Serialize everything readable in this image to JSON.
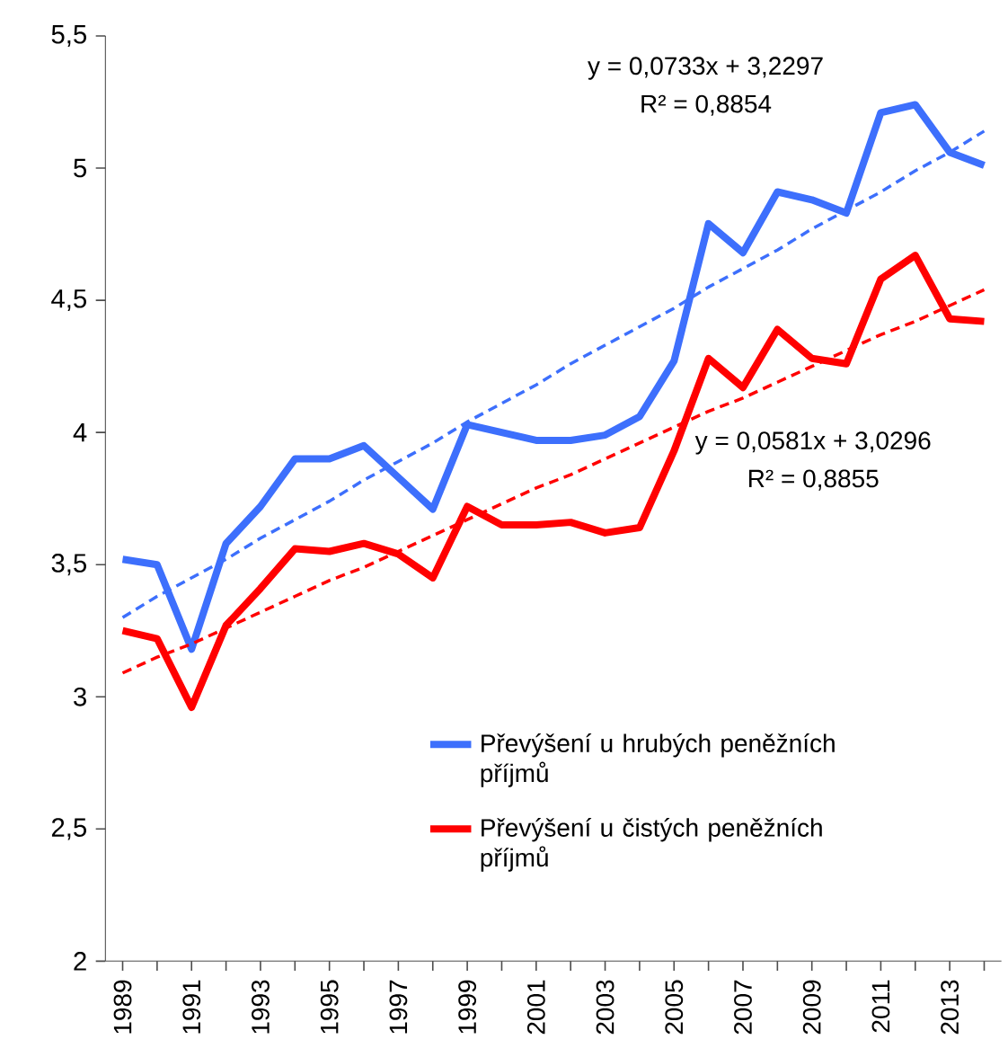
{
  "chart_data": {
    "type": "line",
    "x": [
      1989,
      1990,
      1991,
      1992,
      1993,
      1994,
      1995,
      1996,
      1997,
      1998,
      1999,
      2000,
      2001,
      2002,
      2003,
      2004,
      2005,
      2006,
      2007,
      2008,
      2009,
      2010,
      2011,
      2012,
      2013,
      2014
    ],
    "series": [
      {
        "name": "Převýšení u hrubých peněžních příjmů",
        "color": "#3d6ffc",
        "values": [
          3.52,
          3.5,
          3.18,
          3.58,
          3.72,
          3.9,
          3.9,
          3.95,
          3.83,
          3.71,
          4.03,
          4.0,
          3.97,
          3.97,
          3.99,
          4.06,
          4.27,
          4.79,
          4.68,
          4.91,
          4.88,
          4.83,
          5.21,
          5.24,
          5.06,
          5.01
        ]
      },
      {
        "name": "Převýšení u čistých peněžních příjmů",
        "color": "#ff0000",
        "values": [
          3.25,
          3.22,
          2.96,
          3.27,
          3.41,
          3.56,
          3.55,
          3.58,
          3.54,
          3.45,
          3.72,
          3.65,
          3.65,
          3.66,
          3.62,
          3.64,
          3.93,
          4.28,
          4.17,
          4.39,
          4.28,
          4.26,
          4.58,
          4.67,
          4.43,
          4.42
        ]
      },
      {
        "type": "line",
        "line_style": "dashed",
        "color": "#3d6ffc",
        "values": [
          3.3,
          3.38,
          3.45,
          3.52,
          3.6,
          3.67,
          3.74,
          3.82,
          3.89,
          3.96,
          4.04,
          4.11,
          4.18,
          4.26,
          4.33,
          4.4,
          4.47,
          4.55,
          4.62,
          4.69,
          4.77,
          4.84,
          4.91,
          4.99,
          5.06,
          5.14
        ]
      },
      {
        "type": "line",
        "line_style": "dashed",
        "color": "#ff0000",
        "values": [
          3.09,
          3.15,
          3.2,
          3.26,
          3.32,
          3.38,
          3.44,
          3.49,
          3.55,
          3.61,
          3.67,
          3.73,
          3.79,
          3.84,
          3.9,
          3.96,
          4.02,
          4.08,
          4.13,
          4.19,
          4.25,
          4.31,
          4.37,
          4.42,
          4.48,
          4.54
        ]
      }
    ],
    "annotations": [
      "y = 0,0733x + 3,2297",
      "R² = 0,8854",
      "y = 0,0581x + 3,0296",
      "R² = 0,8855"
    ],
    "xlim": [
      1988.5,
      2014.5
    ],
    "xticks": [
      1989,
      {
        "value": 1990,
        "label": null
      },
      1991,
      {
        "value": 1992,
        "label": null
      },
      1993,
      {
        "value": 1994,
        "label": null
      },
      1995,
      {
        "value": 1996,
        "label": null
      },
      1997,
      {
        "value": 1998,
        "label": null
      },
      1999,
      {
        "value": 2000,
        "label": null
      },
      2001,
      {
        "value": 2002,
        "label": null
      },
      2003,
      {
        "value": 2004,
        "label": null
      },
      2005,
      {
        "value": 2006,
        "label": null
      },
      2007,
      {
        "value": 2008,
        "label": null
      },
      2009,
      {
        "value": 2010,
        "label": null
      },
      2011,
      {
        "value": 2012,
        "label": null
      },
      2013,
      {
        "value": 2014,
        "label": null
      }
    ],
    "ylim": [
      2,
      5.5
    ],
    "yticks": [
      2,
      {
        "value": 2.5,
        "label": "2,5"
      },
      3,
      {
        "value": 3.5,
        "label": "3,5"
      },
      4,
      {
        "value": 4.5,
        "label": "4,5"
      },
      5,
      {
        "value": 5.5,
        "label": "5,5"
      }
    ],
    "legend": "bottom",
    "grid": false,
    "marker": "none",
    "line_style": "solid"
  }
}
